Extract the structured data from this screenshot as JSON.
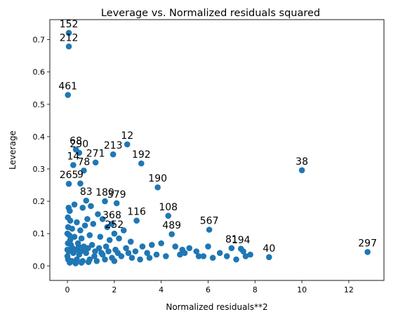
{
  "chart_data": {
    "type": "scatter",
    "title": "Leverage vs. Normalized residuals squared",
    "xlabel": "Normalized residuals**2",
    "ylabel": "Leverage",
    "xlim": [
      -0.75,
      13.5
    ],
    "ylim": [
      -0.045,
      0.762
    ],
    "xticks": [
      0,
      2,
      4,
      6,
      8,
      10,
      12
    ],
    "yticks": [
      0.0,
      0.1,
      0.2,
      0.3,
      0.4,
      0.5,
      0.6,
      0.7
    ],
    "ytick_labels": [
      "0.0",
      "0.1",
      "0.2",
      "0.3",
      "0.4",
      "0.5",
      "0.6",
      "0.7"
    ],
    "grid": false,
    "marker_color": "#1f77b4",
    "labeled_points": [
      {
        "label": "152",
        "x": 0.06,
        "y": 0.721
      },
      {
        "label": "212",
        "x": 0.06,
        "y": 0.679
      },
      {
        "label": "461",
        "x": 0.02,
        "y": 0.529
      },
      {
        "label": "68",
        "x": 0.36,
        "y": 0.36
      },
      {
        "label": "290",
        "x": 0.5,
        "y": 0.35
      },
      {
        "label": "14",
        "x": 0.25,
        "y": 0.312
      },
      {
        "label": "271",
        "x": 1.2,
        "y": 0.32
      },
      {
        "label": "78",
        "x": 0.7,
        "y": 0.295
      },
      {
        "label": "12",
        "x": 2.55,
        "y": 0.376
      },
      {
        "label": "213",
        "x": 1.95,
        "y": 0.345
      },
      {
        "label": "192",
        "x": 3.15,
        "y": 0.317
      },
      {
        "label": "265",
        "x": 0.06,
        "y": 0.254
      },
      {
        "label": "9",
        "x": 0.55,
        "y": 0.255
      },
      {
        "label": "190",
        "x": 3.85,
        "y": 0.243
      },
      {
        "label": "38",
        "x": 10.0,
        "y": 0.296
      },
      {
        "label": "379",
        "x": 2.1,
        "y": 0.194
      },
      {
        "label": "180",
        "x": 1.6,
        "y": 0.2
      },
      {
        "label": "83",
        "x": 0.8,
        "y": 0.202
      },
      {
        "label": "108",
        "x": 4.3,
        "y": 0.155
      },
      {
        "label": "116",
        "x": 2.95,
        "y": 0.14
      },
      {
        "label": "368",
        "x": 1.9,
        "y": 0.13
      },
      {
        "label": "252",
        "x": 2.0,
        "y": 0.1
      },
      {
        "label": "489",
        "x": 4.45,
        "y": 0.098
      },
      {
        "label": "567",
        "x": 6.05,
        "y": 0.112
      },
      {
        "label": "81",
        "x": 7.0,
        "y": 0.055
      },
      {
        "label": "194",
        "x": 7.4,
        "y": 0.053
      },
      {
        "label": "40",
        "x": 8.6,
        "y": 0.027
      },
      {
        "label": "297",
        "x": 12.8,
        "y": 0.043
      }
    ],
    "points": [
      {
        "x": 0.06,
        "y": 0.721
      },
      {
        "x": 0.06,
        "y": 0.679
      },
      {
        "x": 0.02,
        "y": 0.529
      },
      {
        "x": 0.36,
        "y": 0.36
      },
      {
        "x": 0.5,
        "y": 0.35
      },
      {
        "x": 0.25,
        "y": 0.312
      },
      {
        "x": 1.2,
        "y": 0.32
      },
      {
        "x": 0.7,
        "y": 0.295
      },
      {
        "x": 2.55,
        "y": 0.376
      },
      {
        "x": 1.95,
        "y": 0.345
      },
      {
        "x": 3.15,
        "y": 0.317
      },
      {
        "x": 0.06,
        "y": 0.254
      },
      {
        "x": 0.55,
        "y": 0.255
      },
      {
        "x": 3.85,
        "y": 0.243
      },
      {
        "x": 10.0,
        "y": 0.296
      },
      {
        "x": 2.1,
        "y": 0.194
      },
      {
        "x": 1.6,
        "y": 0.2
      },
      {
        "x": 0.8,
        "y": 0.202
      },
      {
        "x": 4.3,
        "y": 0.155
      },
      {
        "x": 2.95,
        "y": 0.14
      },
      {
        "x": 1.9,
        "y": 0.13
      },
      {
        "x": 2.0,
        "y": 0.1
      },
      {
        "x": 4.45,
        "y": 0.098
      },
      {
        "x": 6.05,
        "y": 0.112
      },
      {
        "x": 7.0,
        "y": 0.055
      },
      {
        "x": 7.4,
        "y": 0.053
      },
      {
        "x": 8.6,
        "y": 0.027
      },
      {
        "x": 12.8,
        "y": 0.043
      },
      {
        "x": 0.05,
        "y": 0.18
      },
      {
        "x": 0.1,
        "y": 0.17
      },
      {
        "x": 0.3,
        "y": 0.19
      },
      {
        "x": 0.65,
        "y": 0.18
      },
      {
        "x": 1.0,
        "y": 0.185
      },
      {
        "x": 1.3,
        "y": 0.16
      },
      {
        "x": 0.02,
        "y": 0.15
      },
      {
        "x": 0.12,
        "y": 0.14
      },
      {
        "x": 0.4,
        "y": 0.135
      },
      {
        "x": 0.85,
        "y": 0.145
      },
      {
        "x": 1.1,
        "y": 0.13
      },
      {
        "x": 1.5,
        "y": 0.145
      },
      {
        "x": 0.03,
        "y": 0.12
      },
      {
        "x": 0.2,
        "y": 0.115
      },
      {
        "x": 0.55,
        "y": 0.11
      },
      {
        "x": 0.75,
        "y": 0.125
      },
      {
        "x": 1.7,
        "y": 0.12
      },
      {
        "x": 2.4,
        "y": 0.11
      },
      {
        "x": 0.08,
        "y": 0.095
      },
      {
        "x": 0.3,
        "y": 0.09
      },
      {
        "x": 0.6,
        "y": 0.085
      },
      {
        "x": 0.95,
        "y": 0.095
      },
      {
        "x": 1.4,
        "y": 0.09
      },
      {
        "x": 1.8,
        "y": 0.08
      },
      {
        "x": 2.2,
        "y": 0.085
      },
      {
        "x": 2.7,
        "y": 0.075
      },
      {
        "x": 3.2,
        "y": 0.06
      },
      {
        "x": 3.6,
        "y": 0.065
      },
      {
        "x": 4.0,
        "y": 0.07
      },
      {
        "x": 4.6,
        "y": 0.06
      },
      {
        "x": 4.9,
        "y": 0.05
      },
      {
        "x": 5.2,
        "y": 0.055
      },
      {
        "x": 5.5,
        "y": 0.045
      },
      {
        "x": 0.02,
        "y": 0.07
      },
      {
        "x": 0.15,
        "y": 0.065
      },
      {
        "x": 0.45,
        "y": 0.07
      },
      {
        "x": 0.7,
        "y": 0.06
      },
      {
        "x": 1.05,
        "y": 0.065
      },
      {
        "x": 1.35,
        "y": 0.055
      },
      {
        "x": 1.65,
        "y": 0.06
      },
      {
        "x": 2.05,
        "y": 0.05
      },
      {
        "x": 2.5,
        "y": 0.055
      },
      {
        "x": 2.9,
        "y": 0.045
      },
      {
        "x": 3.4,
        "y": 0.04
      },
      {
        "x": 3.8,
        "y": 0.035
      },
      {
        "x": 4.2,
        "y": 0.03
      },
      {
        "x": 4.8,
        "y": 0.035
      },
      {
        "x": 5.8,
        "y": 0.03
      },
      {
        "x": 6.2,
        "y": 0.025
      },
      {
        "x": 6.5,
        "y": 0.04
      },
      {
        "x": 6.8,
        "y": 0.03
      },
      {
        "x": 7.2,
        "y": 0.02
      },
      {
        "x": 7.6,
        "y": 0.03
      },
      {
        "x": 6.0,
        "y": 0.06
      },
      {
        "x": 0.05,
        "y": 0.045
      },
      {
        "x": 0.25,
        "y": 0.04
      },
      {
        "x": 0.5,
        "y": 0.035
      },
      {
        "x": 0.8,
        "y": 0.04
      },
      {
        "x": 1.15,
        "y": 0.03
      },
      {
        "x": 1.5,
        "y": 0.035
      },
      {
        "x": 1.9,
        "y": 0.025
      },
      {
        "x": 2.3,
        "y": 0.03
      },
      {
        "x": 2.75,
        "y": 0.025
      },
      {
        "x": 3.1,
        "y": 0.02
      },
      {
        "x": 3.5,
        "y": 0.025
      },
      {
        "x": 0.03,
        "y": 0.02
      },
      {
        "x": 0.18,
        "y": 0.015
      },
      {
        "x": 0.4,
        "y": 0.02
      },
      {
        "x": 0.65,
        "y": 0.015
      },
      {
        "x": 0.95,
        "y": 0.02
      },
      {
        "x": 1.25,
        "y": 0.015
      },
      {
        "x": 1.6,
        "y": 0.02
      },
      {
        "x": 2.0,
        "y": 0.015
      },
      {
        "x": 0.1,
        "y": 0.01
      },
      {
        "x": 0.35,
        "y": 0.008
      },
      {
        "x": 0.6,
        "y": 0.01
      },
      {
        "x": 0.9,
        "y": 0.012
      },
      {
        "x": 0.0,
        "y": 0.03
      },
      {
        "x": 0.0,
        "y": 0.1
      },
      {
        "x": 0.0,
        "y": 0.05
      },
      {
        "x": 0.12,
        "y": 0.08
      },
      {
        "x": 0.22,
        "y": 0.055
      },
      {
        "x": 0.38,
        "y": 0.05
      },
      {
        "x": 0.48,
        "y": 0.06
      },
      {
        "x": 0.58,
        "y": 0.045
      },
      {
        "x": 0.72,
        "y": 0.05
      },
      {
        "x": 0.88,
        "y": 0.055
      },
      {
        "x": 1.18,
        "y": 0.045
      },
      {
        "x": 1.45,
        "y": 0.04
      },
      {
        "x": 1.75,
        "y": 0.045
      },
      {
        "x": 2.15,
        "y": 0.04
      },
      {
        "x": 2.6,
        "y": 0.04
      },
      {
        "x": 5.0,
        "y": 0.04
      },
      {
        "x": 5.6,
        "y": 0.03
      },
      {
        "x": 7.5,
        "y": 0.045
      },
      {
        "x": 7.8,
        "y": 0.035
      }
    ]
  }
}
